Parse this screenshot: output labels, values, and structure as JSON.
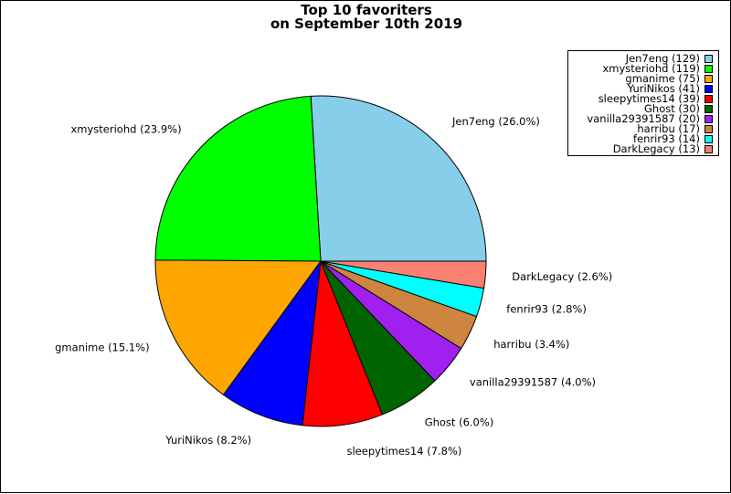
{
  "chart_data": {
    "type": "pie",
    "title_line1": "Top 10 favoriters",
    "title_line2": "on September 10th 2019",
    "start_angle_deg": 0,
    "direction": "counterclockwise",
    "legend_position": "top-right",
    "slices": [
      {
        "name": "Jen7eng",
        "value": 129,
        "label": "Jen7eng (26.0%)",
        "legend": "Jen7eng (129)",
        "color": "#87CEEB"
      },
      {
        "name": "xmysteriohd",
        "value": 119,
        "label": "xmysteriohd (23.9%)",
        "legend": "xmysteriohd (119)",
        "color": "#00FF00"
      },
      {
        "name": "gmanime",
        "value": 75,
        "label": "gmanime (15.1%)",
        "legend": "gmanime (75)",
        "color": "#FFA500"
      },
      {
        "name": "YuriNikos",
        "value": 41,
        "label": "YuriNikos (8.2%)",
        "legend": "YuriNikos (41)",
        "color": "#0000FF"
      },
      {
        "name": "sleepytimes14",
        "value": 39,
        "label": "sleepytimes14 (7.8%)",
        "legend": "sleepytimes14 (39)",
        "color": "#FF0000"
      },
      {
        "name": "Ghost",
        "value": 30,
        "label": "Ghost (6.0%)",
        "legend": "Ghost (30)",
        "color": "#006400"
      },
      {
        "name": "vanilla29391587",
        "value": 20,
        "label": "vanilla29391587 (4.0%)",
        "legend": "vanilla29391587 (20)",
        "color": "#A020F0"
      },
      {
        "name": "harribu",
        "value": 17,
        "label": "harribu (3.4%)",
        "legend": "harribu (17)",
        "color": "#CD853F"
      },
      {
        "name": "fenrir93",
        "value": 14,
        "label": "fenrir93 (2.8%)",
        "legend": "fenrir93 (14)",
        "color": "#00FFFF"
      },
      {
        "name": "DarkLegacy",
        "value": 13,
        "label": "DarkLegacy (2.6%)",
        "legend": "DarkLegacy (13)",
        "color": "#FA8072"
      }
    ]
  }
}
